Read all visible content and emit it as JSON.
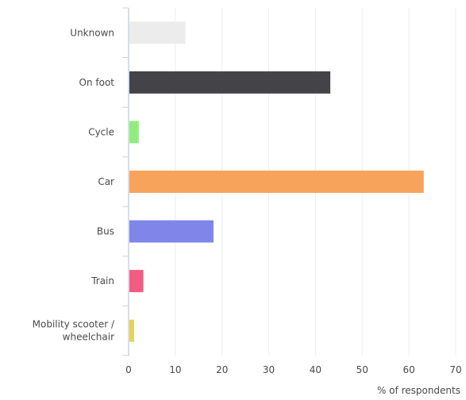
{
  "chart_data": {
    "type": "bar",
    "orientation": "horizontal",
    "categories": [
      "Unknown",
      "On foot",
      "Cycle",
      "Car",
      "Bus",
      "Train",
      "Mobility scooter / wheelchair"
    ],
    "category_label_lines": [
      [
        "Unknown"
      ],
      [
        "On foot"
      ],
      [
        "Cycle"
      ],
      [
        "Car"
      ],
      [
        "Bus"
      ],
      [
        "Train"
      ],
      [
        "Mobility scooter /",
        "wheelchair"
      ]
    ],
    "values": [
      12,
      43,
      2,
      63,
      18,
      3,
      1
    ],
    "colors": [
      "#ececec",
      "#434348",
      "#90ed7d",
      "#f7a35c",
      "#8085e9",
      "#f15c80",
      "#e4d354"
    ],
    "xlabel": "% of respondents",
    "xlim": [
      0,
      70
    ],
    "xticks": [
      0,
      10,
      20,
      30,
      40,
      50,
      60,
      70
    ],
    "grid": true,
    "legend": false
  }
}
